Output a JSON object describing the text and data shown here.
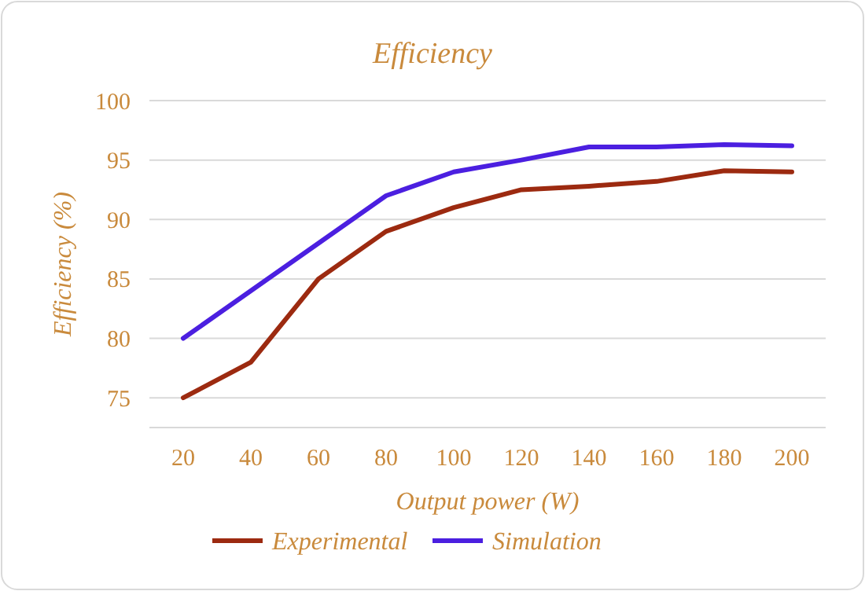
{
  "chart_data": {
    "type": "line",
    "title": "Efficiency",
    "xlabel": "Output power (W)",
    "ylabel": "Efficiency (%)",
    "categories": [
      "20",
      "40",
      "60",
      "80",
      "100",
      "120",
      "140",
      "160",
      "180",
      "200"
    ],
    "series": [
      {
        "name": "Experimental",
        "color": "#9c2a10",
        "values": [
          75,
          78,
          85,
          89,
          91,
          92.5,
          92.8,
          93.2,
          94.1,
          94
        ]
      },
      {
        "name": "Simulation",
        "color": "#4b1fe0",
        "values": [
          80,
          84,
          88,
          92,
          94,
          95,
          96.1,
          96.1,
          96.3,
          96.2
        ]
      }
    ],
    "ylim": [
      72.5,
      100
    ],
    "yticks": [
      75,
      80,
      85,
      90,
      95,
      100
    ],
    "grid": "y",
    "legend": "bottom",
    "marker": "none",
    "line_style": "solid"
  }
}
